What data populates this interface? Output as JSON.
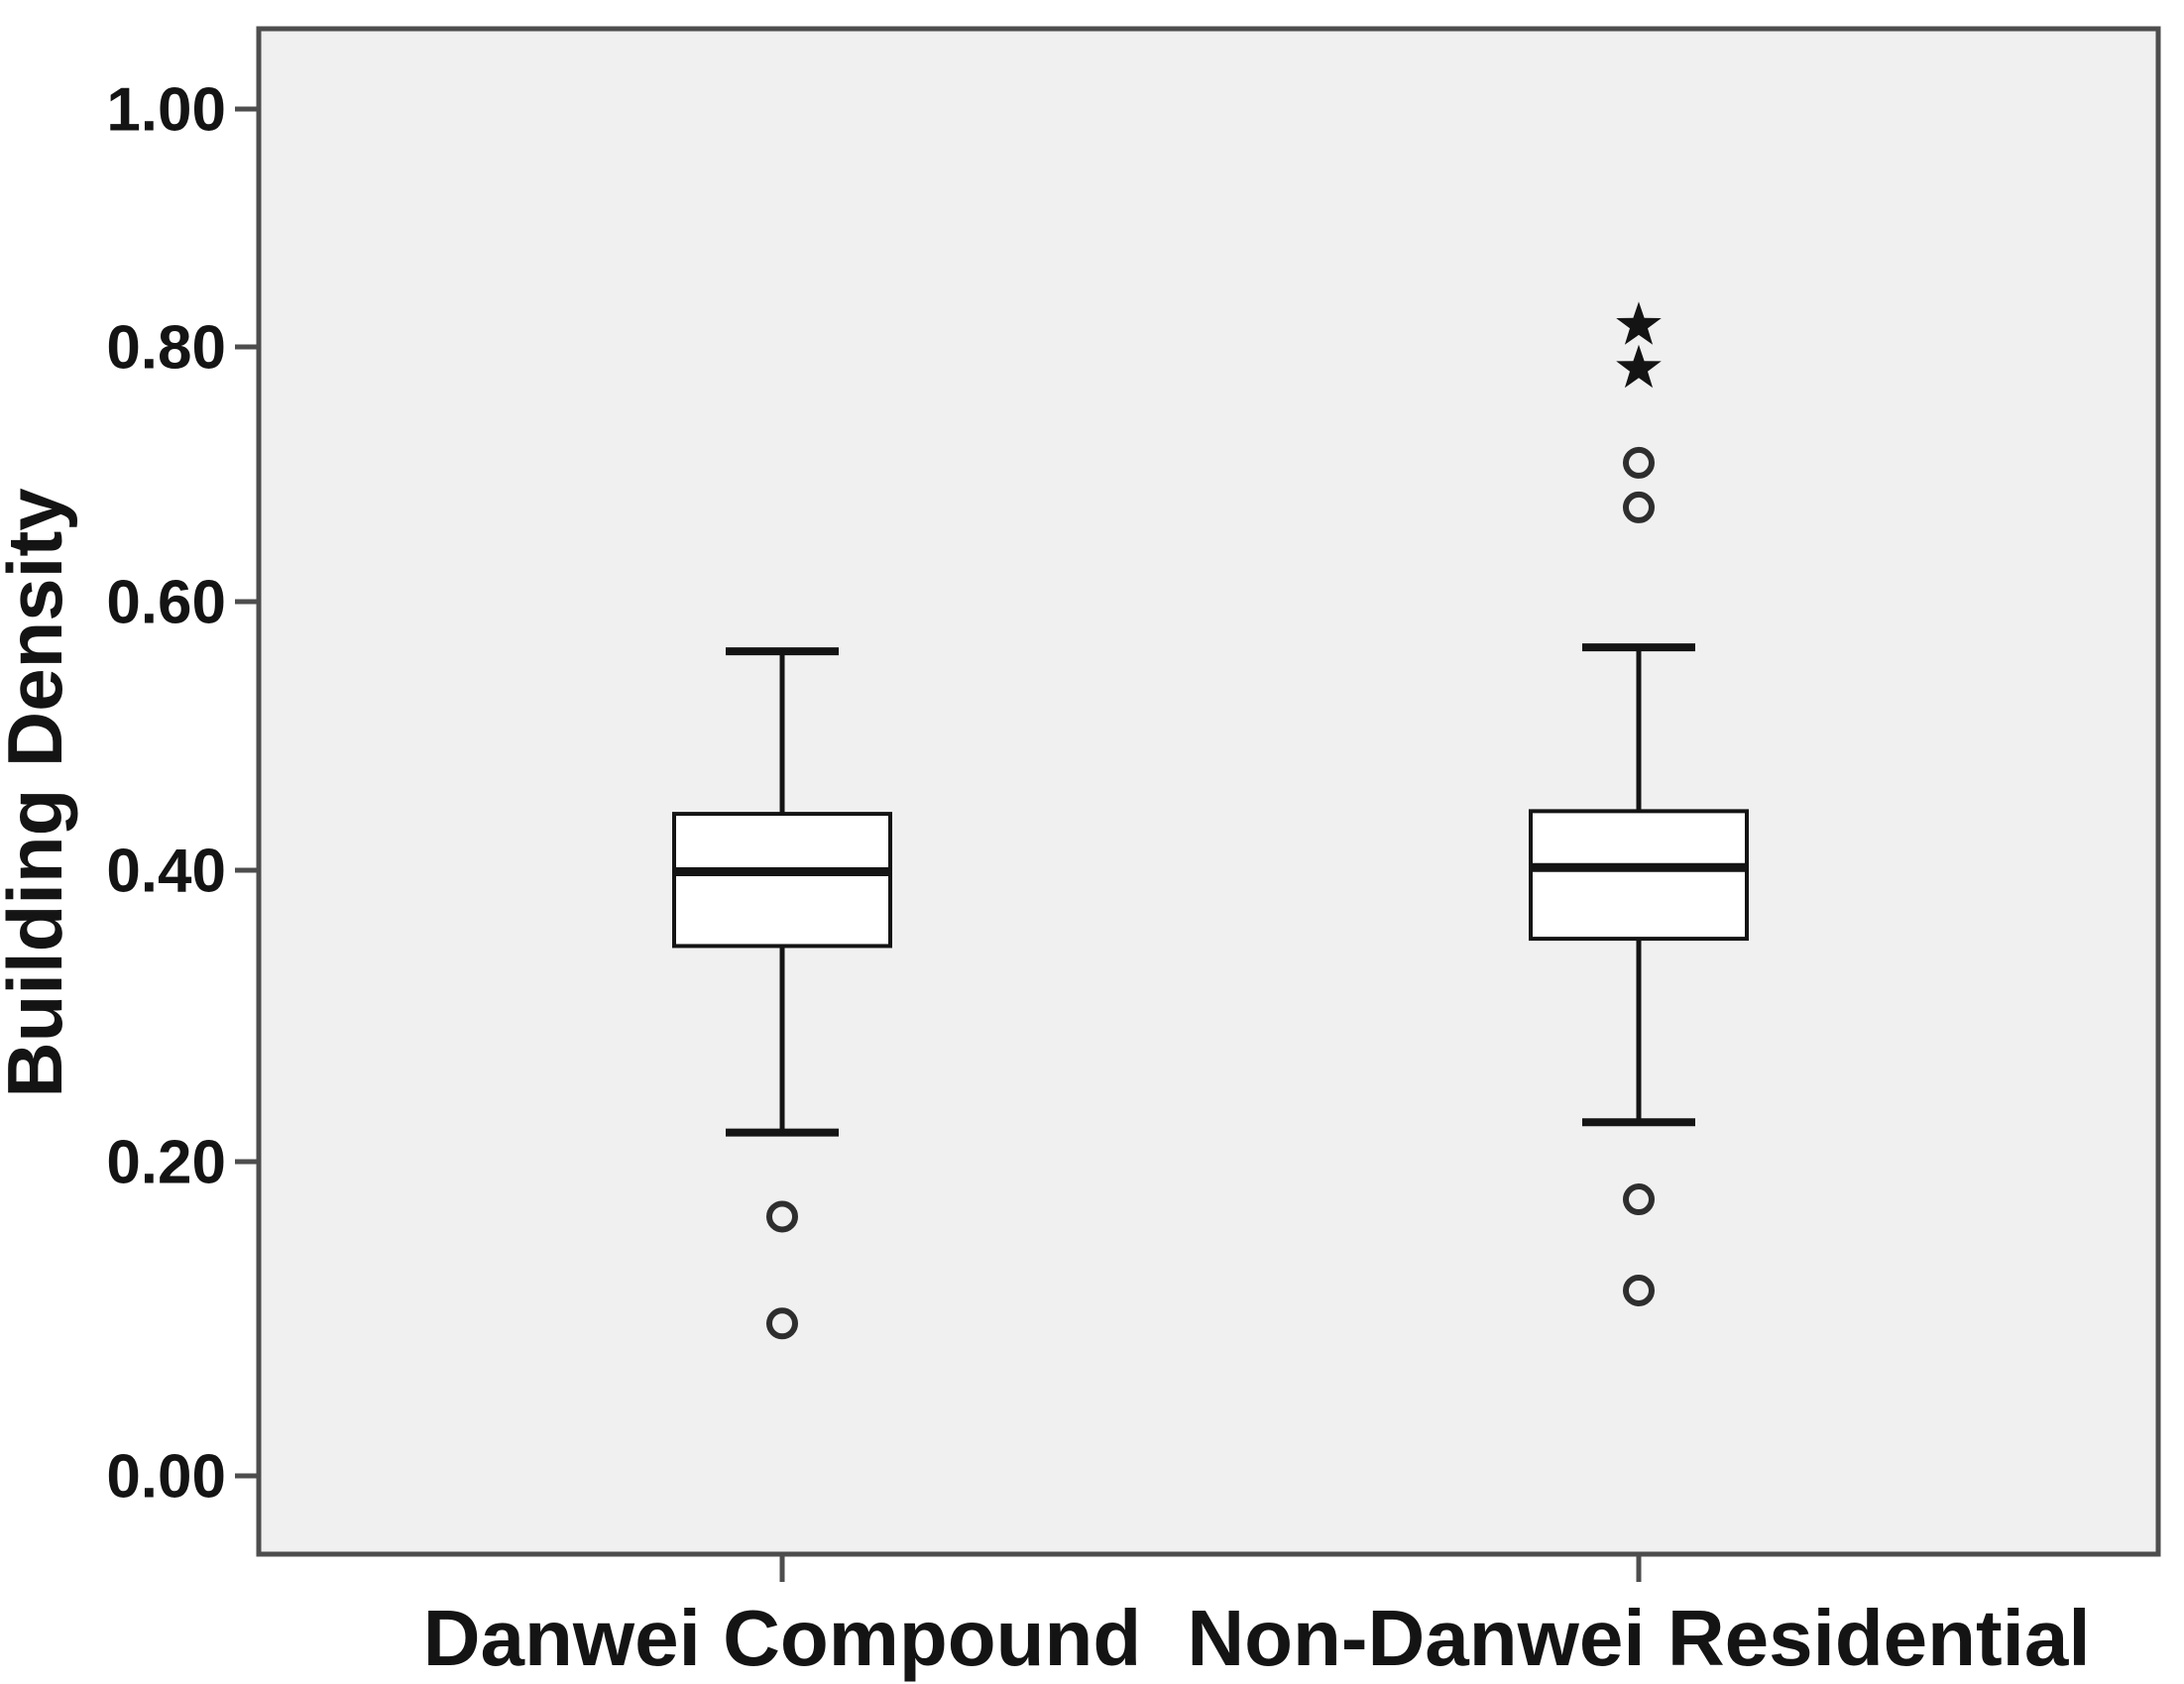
{
  "figure": {
    "background": "#ffffff",
    "plot_background": "#f0f0f0",
    "frame_color": "#4d4d4d",
    "line_color": "#141414",
    "outlier_color": "#2e2e2e"
  },
  "chart_data": {
    "type": "boxplot",
    "title": "",
    "xlabel": "",
    "ylabel": "Building Density",
    "ylim": [
      0.0,
      1.0
    ],
    "grid": false,
    "legend": "none",
    "yticks": [
      {
        "value": 1.0,
        "label": "1.00"
      },
      {
        "value": 0.8,
        "label": "0.80"
      },
      {
        "value": 0.6,
        "label": "0.60"
      },
      {
        "value": 0.4,
        "label": "0.40"
      },
      {
        "value": 0.2,
        "label": "0.20"
      },
      {
        "value": 0.0,
        "label": "0.00"
      }
    ],
    "categories": [
      "Danwei Compound",
      "Non-Danwei Residential"
    ],
    "series": [
      {
        "category": "Danwei Compound",
        "whisker_low": 0.22,
        "q1": 0.348,
        "median": 0.399,
        "q3": 0.442,
        "whisker_high": 0.563,
        "mild_outliers": [
          0.165,
          0.097
        ],
        "extreme_outliers": []
      },
      {
        "category": "Non-Danwei Residential",
        "whisker_low": 0.227,
        "q1": 0.353,
        "median": 0.402,
        "q3": 0.444,
        "whisker_high": 0.566,
        "mild_outliers": [
          0.176,
          0.118,
          0.674,
          0.709
        ],
        "extreme_outliers": [
          0.783,
          0.818
        ]
      }
    ]
  }
}
